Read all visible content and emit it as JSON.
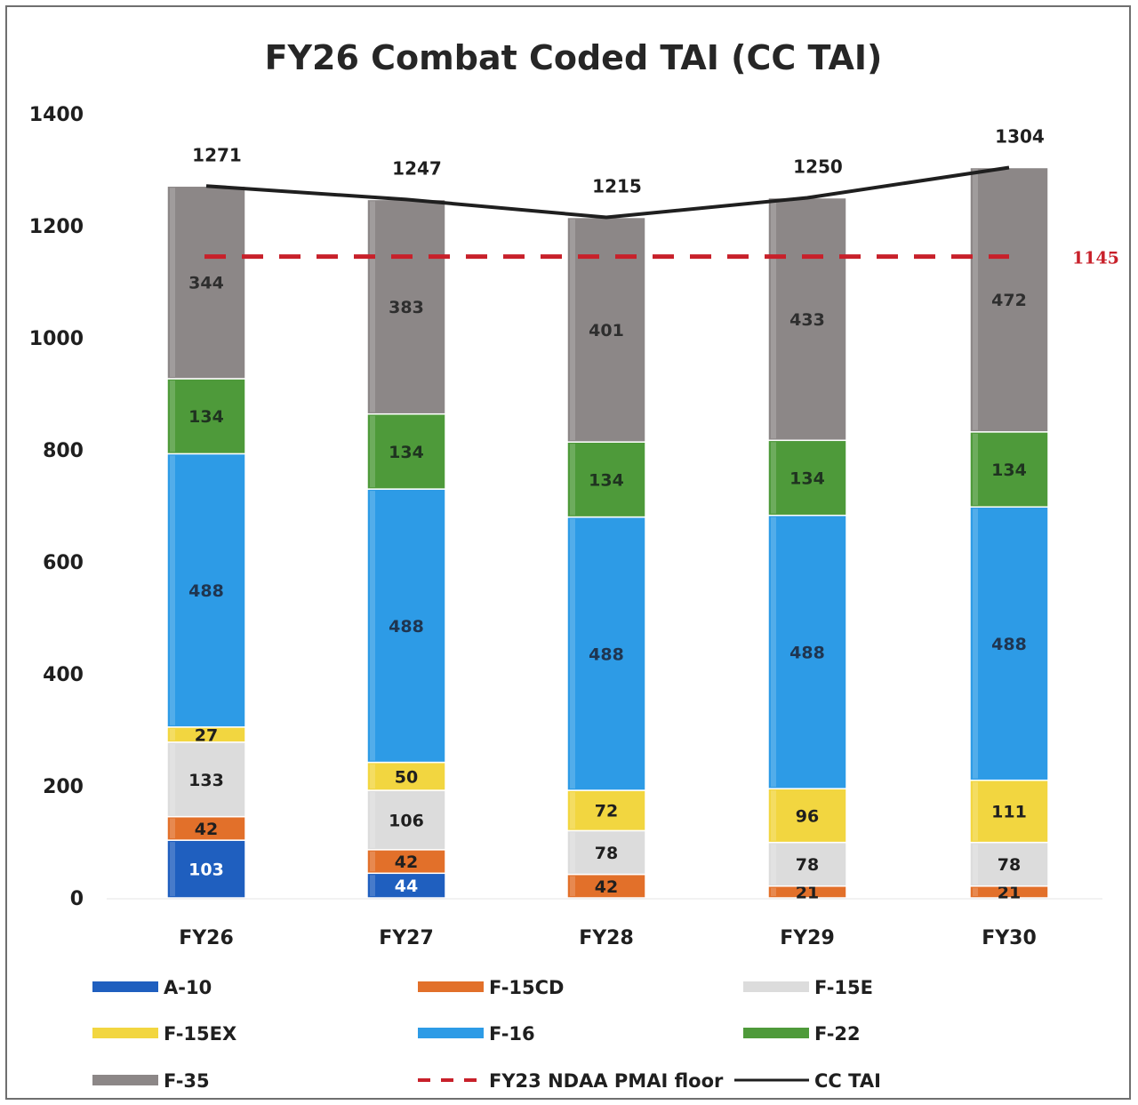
{
  "chart_data": {
    "type": "bar",
    "stacked": true,
    "title": "FY26 Combat Coded TAI (CC TAI)",
    "categories": [
      "FY26",
      "FY27",
      "FY28",
      "FY29",
      "FY30"
    ],
    "ylim": [
      0,
      1400
    ],
    "yticks": [
      "0",
      "200",
      "400",
      "600",
      "800",
      "1000",
      "1200",
      "1400"
    ],
    "series": [
      {
        "name": "A-10",
        "color": "#1f5fbf",
        "values": [
          103,
          44,
          0,
          0,
          0
        ],
        "labels": [
          "103",
          "44",
          "",
          "",
          ""
        ],
        "label_color": "#ffffff"
      },
      {
        "name": "F-15CD",
        "color": "#e2702a",
        "values": [
          42,
          42,
          42,
          21,
          21
        ],
        "labels": [
          "42",
          "42",
          "42",
          "21",
          "21"
        ],
        "label_color": "#1f1f1f"
      },
      {
        "name": "F-15E",
        "color": "#dcdcdc",
        "values": [
          133,
          106,
          78,
          78,
          78
        ],
        "labels": [
          "133",
          "106",
          "78",
          "78",
          "78"
        ],
        "label_color": "#1f1f1f"
      },
      {
        "name": "F-15EX",
        "color": "#f2d640",
        "values": [
          27,
          50,
          72,
          96,
          111
        ],
        "labels": [
          "27",
          "50",
          "72",
          "96",
          "111"
        ],
        "label_color": "#1f1f1f"
      },
      {
        "name": "F-16",
        "color": "#2d9be6",
        "values": [
          488,
          488,
          488,
          488,
          488
        ],
        "labels": [
          "488",
          "488",
          "488",
          "488",
          "488"
        ],
        "label_color": "#1f3550"
      },
      {
        "name": "F-22",
        "color": "#4e9a3a",
        "values": [
          134,
          134,
          134,
          134,
          134
        ],
        "labels": [
          "134",
          "134",
          "134",
          "134",
          "134"
        ],
        "label_color": "#1f3320"
      },
      {
        "name": "F-35",
        "color": "#8c8787",
        "values": [
          344,
          383,
          401,
          433,
          472
        ],
        "labels": [
          "344",
          "383",
          "401",
          "433",
          "472"
        ],
        "label_color": "#2e2e2e"
      }
    ],
    "totals": {
      "name": "CC TAI",
      "color": "#1f1f1f",
      "values": [
        1271,
        1247,
        1215,
        1250,
        1304
      ],
      "labels": [
        "1271",
        "1247",
        "1215",
        "1250",
        "1304"
      ]
    },
    "reference_line": {
      "name": "FY23 NDAA PMAI floor",
      "value": 1145,
      "label": "1145",
      "color": "#c8202a"
    },
    "legend": {
      "position": "bottom",
      "entries": [
        "A-10",
        "F-15CD",
        "F-15E",
        "F-15EX",
        "F-16",
        "F-22",
        "F-35",
        "FY23 NDAA PMAI floor",
        "CC TAI"
      ]
    },
    "grid": false
  }
}
